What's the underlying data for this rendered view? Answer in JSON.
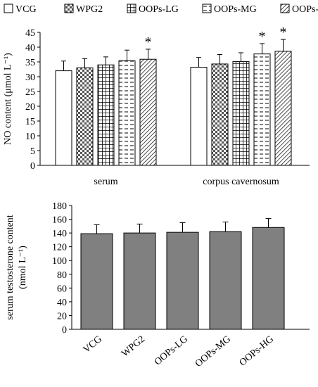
{
  "chart_data": [
    {
      "type": "bar",
      "categories": [
        "serum",
        "corpus cavernosum"
      ],
      "series": [
        {
          "name": "VCG",
          "values": [
            32.0,
            33.2
          ],
          "errors": [
            3.3,
            3.3
          ]
        },
        {
          "name": "WPG2",
          "values": [
            33.0,
            34.3
          ],
          "errors": [
            3.1,
            3.2
          ]
        },
        {
          "name": "OOPs-LG",
          "values": [
            34.0,
            35.1
          ],
          "errors": [
            2.7,
            3.0
          ]
        },
        {
          "name": "OOPs-MG",
          "values": [
            35.4,
            37.7
          ],
          "errors": [
            3.6,
            3.5
          ]
        },
        {
          "name": "OOPs-HG",
          "values": [
            35.9,
            38.6
          ],
          "errors": [
            3.4,
            4.0
          ]
        }
      ],
      "significance": [
        {
          "category": "serum",
          "series": "OOPs-HG",
          "mark": "*"
        },
        {
          "category": "corpus cavernosum",
          "series": "OOPs-MG",
          "mark": "*"
        },
        {
          "category": "corpus cavernosum",
          "series": "OOPs-HG",
          "mark": "*"
        }
      ],
      "ylabel": "NO content (μmol L⁻¹)",
      "ylim": [
        0,
        45
      ],
      "yticks": [
        0,
        5,
        10,
        15,
        20,
        25,
        30,
        35,
        40,
        45
      ],
      "legend": "top",
      "grid": false
    },
    {
      "type": "bar",
      "categories": [
        "VCG",
        "WPG2",
        "OOPs-LG",
        "OOPs-MG",
        "OOPs-HG"
      ],
      "values": [
        139,
        140,
        141,
        142,
        148
      ],
      "errors": [
        13,
        13,
        14,
        14,
        13
      ],
      "ylabel_line1": "serum testosterone content",
      "ylabel_line2": "(nmol L⁻¹)",
      "ylim": [
        0,
        180
      ],
      "yticks": [
        0,
        20,
        40,
        60,
        80,
        100,
        120,
        140,
        160,
        180
      ],
      "bar_color": "#808080",
      "grid": false
    }
  ]
}
